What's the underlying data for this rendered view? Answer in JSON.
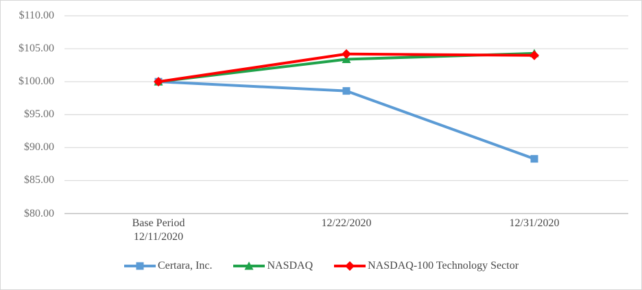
{
  "chart_data": {
    "type": "line",
    "title": "",
    "xlabel": "",
    "ylabel": "",
    "categories": [
      "Base Period\n12/11/2020",
      "12/22/2020",
      "12/31/2020"
    ],
    "series": [
      {
        "name": "Certara, Inc.",
        "color": "#5B9BD5",
        "marker": "square",
        "values": [
          100.0,
          98.6,
          88.3
        ]
      },
      {
        "name": "NASDAQ",
        "color": "#1FA24A",
        "marker": "triangle",
        "values": [
          100.0,
          103.4,
          104.3
        ]
      },
      {
        "name": "NASDAQ-100 Technology Sector",
        "color": "#FE0000",
        "marker": "diamond",
        "values": [
          100.0,
          104.2,
          104.0
        ]
      }
    ],
    "y_ticks": [
      {
        "label": "$110.00",
        "value": 110
      },
      {
        "label": "$105.00",
        "value": 105
      },
      {
        "label": "$100.00",
        "value": 100
      },
      {
        "label": "$95.00",
        "value": 95
      },
      {
        "label": "$90.00",
        "value": 90
      },
      {
        "label": "$85.00",
        "value": 85
      },
      {
        "label": "$80.00",
        "value": 80
      }
    ],
    "ylim": [
      80,
      110
    ],
    "grid": true,
    "legend_position": "bottom",
    "grid_color": "#d9d9d9",
    "axis_line_color": "#bfbfbf",
    "y_tick_label_color": "#6e6e6e",
    "x_tick_label_color": "#474747",
    "legend_text_color": "#474747",
    "background_color": "#ffffff",
    "border_color": "#d6d6d6"
  }
}
